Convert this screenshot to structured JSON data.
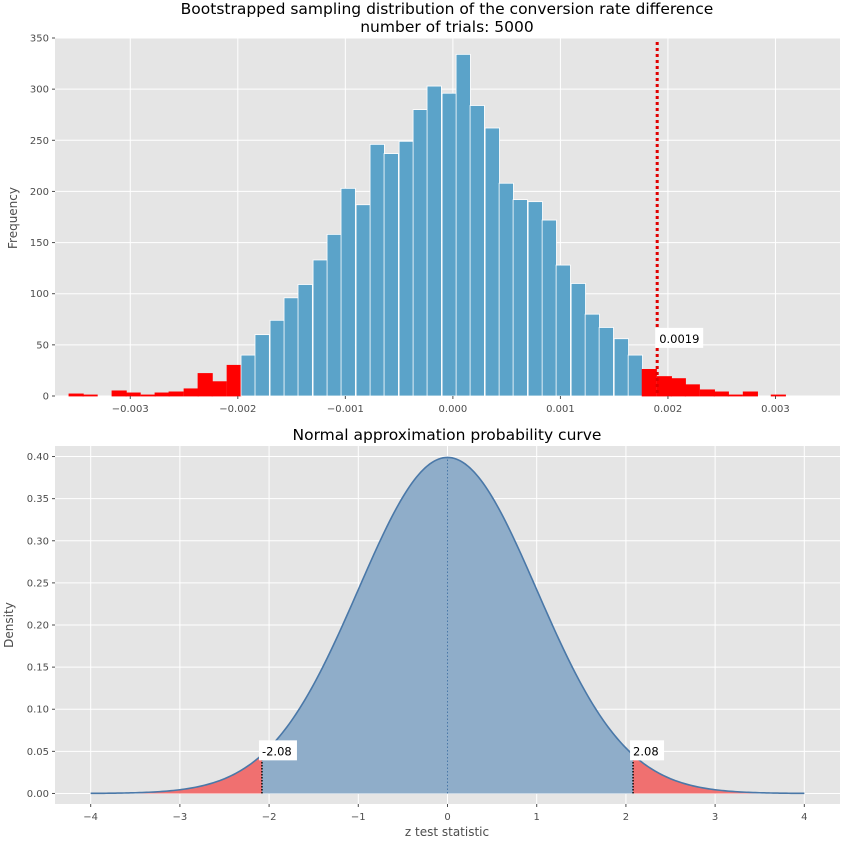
{
  "chart_data": [
    {
      "type": "bar",
      "title_line1": "Bootstrapped sampling distribution of the conversion rate difference",
      "title_line2": "number of trials: 5000",
      "xlabel": "",
      "ylabel": "Frequency",
      "xlim": [
        -0.0037,
        0.0036
      ],
      "ylim": [
        0,
        350
      ],
      "x_ticks": [
        -0.003,
        -0.002,
        -0.001,
        0.0,
        0.001,
        0.002,
        0.003
      ],
      "x_tick_labels": [
        "−0.003",
        "−0.002",
        "−0.001",
        "0.000",
        "0.001",
        "0.002",
        "0.003"
      ],
      "y_ticks": [
        0,
        50,
        100,
        150,
        200,
        250,
        300,
        350
      ],
      "y_tick_labels": [
        "0",
        "50",
        "100",
        "150",
        "200",
        "250",
        "300",
        "350"
      ],
      "grid": true,
      "bin_width": 0.0001333,
      "bins": [
        {
          "x": -0.00357,
          "value": 2,
          "tail": true
        },
        {
          "x": -0.00344,
          "value": 1,
          "tail": true
        },
        {
          "x": -0.0033,
          "value": 0,
          "tail": true
        },
        {
          "x": -0.00317,
          "value": 5,
          "tail": true
        },
        {
          "x": -0.00304,
          "value": 3,
          "tail": true
        },
        {
          "x": -0.0029,
          "value": 1,
          "tail": true
        },
        {
          "x": -0.00277,
          "value": 3,
          "tail": true
        },
        {
          "x": -0.00264,
          "value": 4,
          "tail": true
        },
        {
          "x": -0.0025,
          "value": 7,
          "tail": true
        },
        {
          "x": -0.00237,
          "value": 22,
          "tail": true
        },
        {
          "x": -0.00224,
          "value": 14,
          "tail": true
        },
        {
          "x": -0.0021,
          "value": 30,
          "tail": true
        },
        {
          "x": -0.00197,
          "value": 40,
          "tail": false
        },
        {
          "x": -0.00184,
          "value": 60,
          "tail": false
        },
        {
          "x": -0.0017,
          "value": 74,
          "tail": false
        },
        {
          "x": -0.00157,
          "value": 96,
          "tail": false
        },
        {
          "x": -0.00144,
          "value": 109,
          "tail": false
        },
        {
          "x": -0.0013,
          "value": 133,
          "tail": false
        },
        {
          "x": -0.00117,
          "value": 158,
          "tail": false
        },
        {
          "x": -0.00104,
          "value": 203,
          "tail": false
        },
        {
          "x": -0.0009,
          "value": 187,
          "tail": false
        },
        {
          "x": -0.00077,
          "value": 246,
          "tail": false
        },
        {
          "x": -0.00064,
          "value": 237,
          "tail": false
        },
        {
          "x": -0.0005,
          "value": 249,
          "tail": false
        },
        {
          "x": -0.00037,
          "value": 280,
          "tail": false
        },
        {
          "x": -0.00024,
          "value": 303,
          "tail": false
        },
        {
          "x": -0.0001,
          "value": 296,
          "tail": false
        },
        {
          "x": 3e-05,
          "value": 334,
          "tail": false
        },
        {
          "x": 0.00016,
          "value": 284,
          "tail": false
        },
        {
          "x": 0.0003,
          "value": 262,
          "tail": false
        },
        {
          "x": 0.00043,
          "value": 208,
          "tail": false
        },
        {
          "x": 0.00056,
          "value": 192,
          "tail": false
        },
        {
          "x": 0.0007,
          "value": 190,
          "tail": false
        },
        {
          "x": 0.00083,
          "value": 172,
          "tail": false
        },
        {
          "x": 0.00096,
          "value": 128,
          "tail": false
        },
        {
          "x": 0.0011,
          "value": 110,
          "tail": false
        },
        {
          "x": 0.00123,
          "value": 80,
          "tail": false
        },
        {
          "x": 0.00136,
          "value": 67,
          "tail": false
        },
        {
          "x": 0.0015,
          "value": 56,
          "tail": false
        },
        {
          "x": 0.00163,
          "value": 40,
          "tail": false
        },
        {
          "x": 0.00176,
          "value": 26,
          "tail": true
        },
        {
          "x": 0.0019,
          "value": 19,
          "tail": true
        },
        {
          "x": 0.00203,
          "value": 17,
          "tail": true
        },
        {
          "x": 0.00216,
          "value": 11,
          "tail": true
        },
        {
          "x": 0.0023,
          "value": 6,
          "tail": true
        },
        {
          "x": 0.00243,
          "value": 4,
          "tail": true
        },
        {
          "x": 0.00256,
          "value": 1,
          "tail": true
        },
        {
          "x": 0.0027,
          "value": 4,
          "tail": true
        },
        {
          "x": 0.00283,
          "value": 0,
          "tail": true
        },
        {
          "x": 0.00296,
          "value": 1,
          "tail": true
        }
      ],
      "observed_line": {
        "x": 0.0019,
        "label": "0.0019"
      },
      "colors": {
        "bar": "#5ba3c9",
        "tail": "#ff0000",
        "line": "#e00000",
        "background": "#e5e5e5"
      }
    },
    {
      "type": "area",
      "title": "Normal approximation probability curve",
      "xlabel": "z test statistic",
      "ylabel": "Density",
      "xlim": [
        -4.4,
        4.4
      ],
      "ylim": [
        -0.0125,
        0.4125
      ],
      "x_ticks": [
        -4,
        -3,
        -2,
        -1,
        0,
        1,
        2,
        3,
        4
      ],
      "x_tick_labels": [
        "−4",
        "−3",
        "−2",
        "−1",
        "0",
        "1",
        "2",
        "3",
        "4"
      ],
      "y_ticks": [
        0.0,
        0.05,
        0.1,
        0.15,
        0.2,
        0.25,
        0.3,
        0.35,
        0.4
      ],
      "y_tick_labels": [
        "0.00",
        "0.05",
        "0.10",
        "0.15",
        "0.20",
        "0.25",
        "0.30",
        "0.35",
        "0.40"
      ],
      "grid": true,
      "curve": {
        "distribution": "standard normal",
        "x_range": [
          -4,
          4
        ]
      },
      "critical_values": [
        {
          "z": -2.08,
          "label": "-2.08"
        },
        {
          "z": 2.08,
          "label": "2.08"
        }
      ],
      "colors": {
        "fill": "#8fadc9",
        "line": "#4a78a8",
        "tail": "#f07070",
        "background": "#e5e5e5"
      }
    }
  ]
}
